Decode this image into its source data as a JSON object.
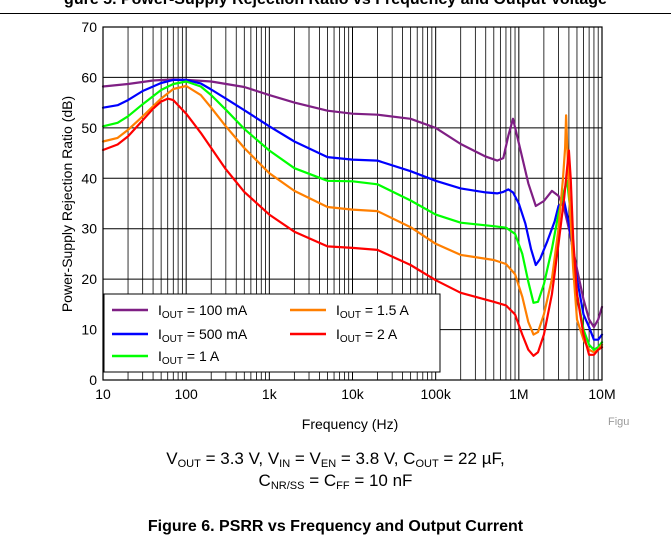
{
  "page": {
    "top_title": "gure 5. Power-Supply Rejection Ratio vs Frequency and Output Voltage",
    "condition_line1": {
      "vout": "3.3 V",
      "vin": "V",
      "ven": "= 3.8 V",
      "cout": "= 22 µF,"
    },
    "condition_line2": {
      "cnr": "= C",
      "cff_value": "= 10 nF"
    },
    "caption": "Figure 6. PSRR vs Frequency and Output Current",
    "figure_tag": "Figu"
  },
  "colors": {
    "purple": "#7f1f84",
    "blue": "#0000ff",
    "green": "#00ff00",
    "orange": "#ff7f00",
    "red": "#ff0000",
    "grid": "#000000"
  },
  "chart_data": {
    "type": "line",
    "title": "",
    "xlabel": "Frequency (Hz)",
    "ylabel": "Power-Supply Rejection Ratio (dB)",
    "xscale": "log",
    "xlim": [
      10,
      10000000
    ],
    "ylim": [
      0,
      70
    ],
    "grid": true,
    "legend_position": "bottom-left",
    "x_ticks": [
      10,
      100,
      1000,
      10000,
      100000,
      1000000,
      10000000
    ],
    "x_tick_labels": [
      "10",
      "100",
      "1k",
      "10k",
      "100k",
      "1M",
      "10M"
    ],
    "y_ticks": [
      0,
      10,
      20,
      30,
      40,
      50,
      60,
      70
    ],
    "y_tick_labels": [
      "0",
      "10",
      "20",
      "30",
      "40",
      "50",
      "60",
      "70"
    ],
    "series": [
      {
        "name": "IOUT = 100 mA",
        "color": "#7f1f84",
        "x": [
          10,
          20,
          40,
          70,
          100,
          200,
          500,
          1000,
          2000,
          5000,
          10000,
          20000,
          50000,
          100000,
          200000,
          400000,
          550000,
          650000,
          750000,
          850000,
          1000000,
          1300000,
          1600000,
          2000000,
          2500000,
          3000000,
          3500000,
          4000000,
          5000000,
          6000000,
          7000000,
          8000000,
          9000000,
          10000000
        ],
        "y": [
          58.2,
          58.7,
          59.4,
          59.6,
          59.5,
          59.2,
          58.1,
          56.5,
          55,
          53.4,
          52.8,
          52.6,
          51.8,
          50,
          46.8,
          44.3,
          43.5,
          44,
          48.5,
          51.8,
          47,
          39,
          34.5,
          35.5,
          37.5,
          36.5,
          34,
          30,
          22,
          16,
          12,
          10.5,
          12,
          14.5
        ]
      },
      {
        "name": "IOUT = 500 mA",
        "color": "#0000ff",
        "x": [
          10,
          15,
          20,
          30,
          50,
          70,
          100,
          150,
          200,
          300,
          500,
          1000,
          2000,
          5000,
          10000,
          20000,
          50000,
          100000,
          200000,
          400000,
          550000,
          650000,
          750000,
          850000,
          1000000,
          1200000,
          1400000,
          1600000,
          1800000,
          2200000,
          2700000,
          3000000,
          3500000,
          4000000,
          5000000,
          6000000,
          7000000,
          8000000,
          9000000,
          10000000
        ],
        "y": [
          54,
          54.5,
          55.5,
          57.3,
          58.9,
          59.5,
          59.5,
          58.8,
          57.6,
          55.8,
          53.5,
          50.3,
          47.3,
          44.2,
          43.7,
          43.5,
          41.4,
          39.5,
          38,
          37.2,
          37,
          37.3,
          37.8,
          37.2,
          35,
          31,
          26,
          22.8,
          24,
          27.5,
          31.5,
          34.5,
          35.5,
          31,
          20,
          13,
          10.5,
          8,
          8,
          9
        ]
      },
      {
        "name": "IOUT = 1 A",
        "color": "#00ff00",
        "x": [
          10,
          15,
          20,
          30,
          50,
          70,
          100,
          150,
          200,
          300,
          500,
          1000,
          2000,
          5000,
          10000,
          20000,
          50000,
          100000,
          200000,
          500000,
          700000,
          900000,
          1100000,
          1300000,
          1500000,
          1700000,
          2000000,
          2500000,
          3000000,
          3500000,
          3800000,
          4200000,
          5000000,
          6000000,
          7000000,
          8000000,
          9000000,
          10000000
        ],
        "y": [
          50.3,
          51,
          52.3,
          54.7,
          57.5,
          58.7,
          59.2,
          58.2,
          56.5,
          53.6,
          49.8,
          45.5,
          42,
          39.5,
          39.4,
          38.8,
          35.6,
          32.8,
          31.2,
          30.5,
          30.2,
          29,
          25,
          19.5,
          15.3,
          15.5,
          19,
          26,
          33,
          37.5,
          39.5,
          33,
          17,
          10,
          7,
          6,
          6.5,
          7.5
        ]
      },
      {
        "name": "IOUT = 1.5 A",
        "color": "#ff7f00",
        "x": [
          10,
          15,
          20,
          30,
          50,
          70,
          100,
          150,
          200,
          300,
          500,
          1000,
          2000,
          5000,
          10000,
          20000,
          50000,
          100000,
          200000,
          500000,
          700000,
          900000,
          1100000,
          1300000,
          1500000,
          1700000,
          2000000,
          2500000,
          3000000,
          3400000,
          3600000,
          3700000,
          3800000,
          4000000,
          4500000,
          5000000,
          6000000,
          7000000,
          8000000,
          9000000,
          10000000
        ],
        "y": [
          47.3,
          48,
          49.6,
          52.3,
          55.8,
          57.7,
          58.3,
          56.5,
          54,
          50.3,
          46,
          41,
          37.5,
          34.3,
          33.8,
          33.5,
          30.3,
          27,
          24.8,
          23.8,
          23,
          21,
          16.5,
          11.5,
          9,
          9.5,
          13,
          20,
          30,
          40,
          46,
          52.5,
          47,
          38,
          22,
          12,
          8,
          6,
          5.5,
          6,
          7
        ]
      },
      {
        "name": "IOUT = 2 A",
        "color": "#ff0000",
        "x": [
          10,
          15,
          20,
          30,
          40,
          50,
          60,
          70,
          100,
          150,
          200,
          300,
          500,
          1000,
          2000,
          5000,
          10000,
          20000,
          50000,
          100000,
          200000,
          500000,
          700000,
          900000,
          1100000,
          1300000,
          1500000,
          1700000,
          2000000,
          2500000,
          3000000,
          3500000,
          3800000,
          4000000,
          4200000,
          4500000,
          5000000,
          6000000,
          7000000,
          8000000,
          9000000,
          10000000
        ],
        "y": [
          45.6,
          46.7,
          48.3,
          51.5,
          53.8,
          55.2,
          55.8,
          55.5,
          52.8,
          49,
          46,
          41.8,
          37.3,
          32.8,
          29.4,
          26.5,
          26.2,
          25.8,
          22.8,
          19.8,
          17.3,
          15.5,
          14.8,
          13,
          9,
          6,
          4.8,
          5.5,
          9,
          17,
          27,
          36,
          42,
          45.5,
          40,
          28,
          17,
          9,
          5,
          5,
          6,
          6.5
        ]
      }
    ]
  }
}
